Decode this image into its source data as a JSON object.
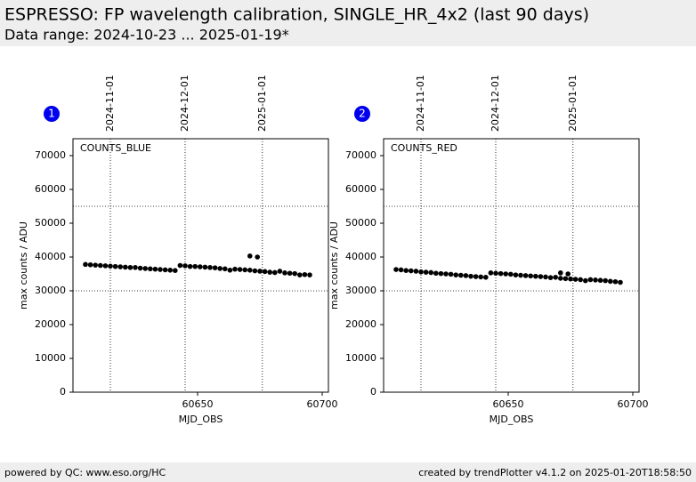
{
  "header": {
    "title": "ESPRESSO: FP wavelength calibration, SINGLE_HR_4x2 (last 90 days)",
    "subtitle": "Data range: 2024-10-23 ... 2025-01-19*"
  },
  "footer": {
    "left": "powered by QC: www.eso.org/HC",
    "right": "created by trendPlotter v4.1.2 on 2025-01-20T18:58:50"
  },
  "chart_data": [
    {
      "type": "scatter",
      "badge": "1",
      "label": "COUNTS_BLUE",
      "xlabel": "MJD_OBS",
      "ylabel": "max counts / ADU",
      "color": "#000000",
      "x": [
        60605,
        60607,
        60609,
        60611,
        60613,
        60615,
        60617,
        60619,
        60621,
        60623,
        60625,
        60627,
        60629,
        60631,
        60633,
        60635,
        60637,
        60639,
        60641,
        60643,
        60645,
        60647,
        60649,
        60651,
        60653,
        60655,
        60657,
        60659,
        60661,
        60663,
        60665,
        60667,
        60669,
        60671,
        60673,
        60675,
        60677,
        60679,
        60681,
        60683,
        60685,
        60687,
        60689,
        60691,
        60693,
        60695,
        60671,
        60674
      ],
      "values": [
        37800,
        37700,
        37600,
        37500,
        37400,
        37300,
        37200,
        37100,
        37000,
        36900,
        36900,
        36700,
        36600,
        36500,
        36400,
        36300,
        36200,
        36100,
        36000,
        37500,
        37400,
        37200,
        37200,
        37100,
        37000,
        36900,
        36800,
        36600,
        36500,
        36100,
        36400,
        36300,
        36200,
        36100,
        35900,
        35800,
        35700,
        35500,
        35400,
        35800,
        35300,
        35200,
        35100,
        34700,
        34800,
        34700,
        40300,
        40000
      ],
      "xlim": [
        60600,
        60702.5
      ],
      "ylim": [
        0,
        75000
      ],
      "xticks": [
        60650,
        60700
      ],
      "yticks": [
        0,
        10000,
        20000,
        30000,
        40000,
        50000,
        60000,
        70000
      ],
      "hlines": [
        30000,
        55000
      ],
      "x2ticks": [
        {
          "value": 60615,
          "label": "2024-11-01"
        },
        {
          "value": 60645,
          "label": "2024-12-01"
        },
        {
          "value": 60676,
          "label": "2025-01-01"
        }
      ]
    },
    {
      "type": "scatter",
      "badge": "2",
      "label": "COUNTS_RED",
      "xlabel": "MJD_OBS",
      "ylabel": "max counts / ADU",
      "color": "#000000",
      "x": [
        60605,
        60607,
        60609,
        60611,
        60613,
        60615,
        60617,
        60619,
        60621,
        60623,
        60625,
        60627,
        60629,
        60631,
        60633,
        60635,
        60637,
        60639,
        60641,
        60643,
        60645,
        60647,
        60649,
        60651,
        60653,
        60655,
        60657,
        60659,
        60661,
        60663,
        60665,
        60667,
        60669,
        60671,
        60673,
        60675,
        60677,
        60679,
        60681,
        60683,
        60685,
        60687,
        60689,
        60691,
        60693,
        60695,
        60671,
        60674
      ],
      "values": [
        36300,
        36200,
        36000,
        35900,
        35800,
        35600,
        35500,
        35400,
        35200,
        35100,
        35000,
        34900,
        34700,
        34600,
        34500,
        34300,
        34200,
        34100,
        34000,
        35300,
        35200,
        35100,
        35000,
        34900,
        34700,
        34600,
        34500,
        34400,
        34300,
        34200,
        34100,
        33900,
        34000,
        33700,
        33600,
        33500,
        33400,
        33300,
        33000,
        33300,
        33200,
        33100,
        33000,
        32800,
        32700,
        32500,
        35300,
        35000
      ],
      "xlim": [
        60600,
        60702.5
      ],
      "ylim": [
        0,
        75000
      ],
      "xticks": [
        60650,
        60700
      ],
      "yticks": [
        0,
        10000,
        20000,
        30000,
        40000,
        50000,
        60000,
        70000
      ],
      "hlines": [
        30000,
        55000
      ],
      "x2ticks": [
        {
          "value": 60615,
          "label": "2024-11-01"
        },
        {
          "value": 60645,
          "label": "2024-12-01"
        },
        {
          "value": 60676,
          "label": "2025-01-01"
        }
      ]
    }
  ]
}
